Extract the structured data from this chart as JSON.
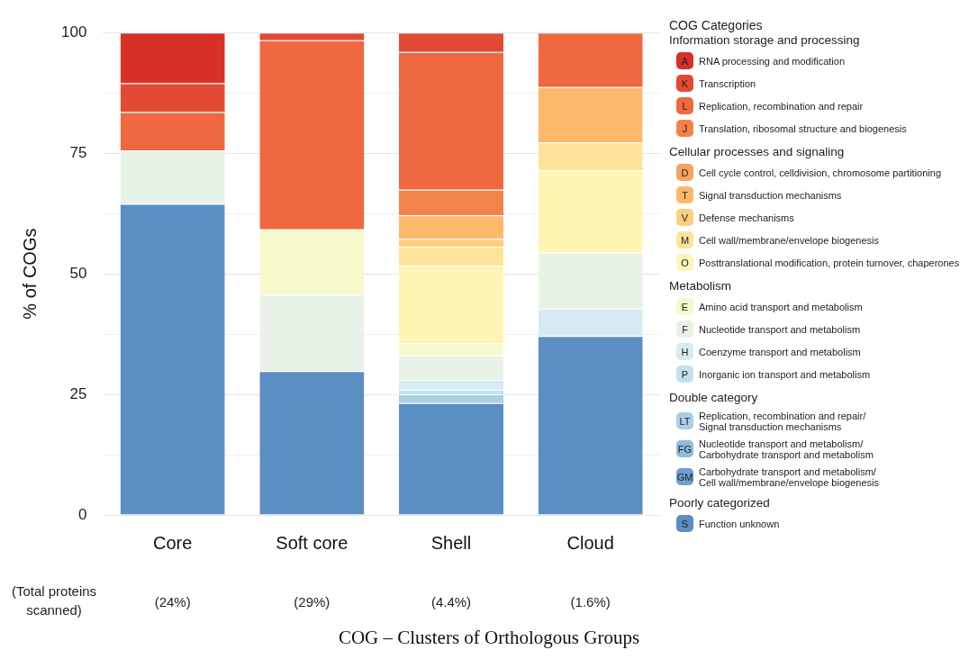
{
  "chart_data": {
    "type": "bar",
    "stacked": true,
    "ylabel": "% of COGs",
    "legend_title": "COG Categories",
    "legend": "right",
    "categories": [
      "Core",
      "Soft core",
      "Shell",
      "Cloud"
    ],
    "ylim": [
      0,
      100
    ],
    "yticks": [
      0,
      {
        "value": 12.5,
        "label": null
      },
      25,
      {
        "value": 37.5,
        "label": null
      },
      50,
      {
        "value": 62.5,
        "label": null
      },
      75,
      {
        "value": 87.5,
        "label": null
      },
      100
    ],
    "grid": "y",
    "series": [
      {
        "name": "Function unknown",
        "color": "#5b8ec2",
        "values": [
          64.5,
          29.8,
          23.2,
          37.1
        ]
      },
      {
        "name": "Carbohydrate transport and metabolism/\nCell wall/membrane/envelope biogenesis",
        "color": "#6f9fcf",
        "values": [
          null,
          null,
          null,
          null
        ]
      },
      {
        "name": "Nucleotide transport and metabolism/\nCarbohydrate transport and metabolism",
        "color": "#8fbbdc",
        "values": [
          null,
          null,
          null,
          null
        ]
      },
      {
        "name": "Replication, recombination and repair/\nSignal transduction mechanisms",
        "color": "#a9cfe5",
        "values": [
          null,
          null,
          1.8,
          null
        ]
      },
      {
        "name": "Inorganic ion transport and metabolism",
        "color": "#c2e1ef",
        "values": [
          null,
          null,
          1.0,
          null
        ]
      },
      {
        "name": "Coenzyme transport and metabolism",
        "color": "#d6ebf4",
        "values": [
          null,
          null,
          2.0,
          5.7
        ]
      },
      {
        "name": "Nucleotide transport and metabolism",
        "color": "#e9f2e6",
        "values": [
          11.1,
          15.9,
          5.1,
          11.6
        ]
      },
      {
        "name": "Amino acid transport and metabolism",
        "color": "#f5f9cc",
        "values": [
          null,
          13.5,
          2.5,
          null
        ]
      },
      {
        "name": "Posttranslational modification, protein turnover, chaperones",
        "color": "#fef5b5",
        "values": [
          null,
          null,
          16.1,
          17.1
        ]
      },
      {
        "name": "Cell wall/membrane/envelope biogenesis",
        "color": "#fde49a",
        "values": [
          null,
          null,
          3.9,
          5.7
        ]
      },
      {
        "name": "Defense mechanisms",
        "color": "#fdcf7e",
        "values": [
          null,
          null,
          1.6,
          null
        ]
      },
      {
        "name": "Signal transduction mechanisms",
        "color": "#fdb96b",
        "values": [
          null,
          null,
          4.9,
          11.5
        ]
      },
      {
        "name": "Cell cycle control, celldivision, chromosome partitioning",
        "color": "#f9a25f",
        "values": [
          null,
          null,
          null,
          null
        ]
      },
      {
        "name": "Translation, ribosomal structure and biogenesis",
        "color": "#f4824b",
        "values": [
          null,
          null,
          5.3,
          null
        ]
      },
      {
        "name": "Replication, recombination and repair",
        "color": "#f06840",
        "values": [
          7.9,
          39.2,
          28.6,
          11.3
        ]
      },
      {
        "name": "Transcription",
        "color": "#e34a33",
        "values": [
          6.0,
          1.6,
          4.0,
          null
        ]
      },
      {
        "name": "RNA processing and modification",
        "color": "#d73027",
        "values": [
          10.5,
          null,
          null,
          null
        ]
      }
    ],
    "annotations": [
      "Information storage and processing",
      "Cellular processes and signaling",
      "Metabolism",
      "Double category",
      "Poorly categorized",
      "(Total proteins\nscanned)",
      "(24%)",
      "(29%)",
      "(4.4%)",
      "(1.6%)",
      "COG – Clusters of Orthologous Groups",
      "S",
      "GM",
      "FG",
      "LT",
      "P",
      "H",
      "F",
      "E",
      "O",
      "M",
      "V",
      "T",
      "D",
      "J",
      "L",
      "K",
      "A"
    ]
  }
}
